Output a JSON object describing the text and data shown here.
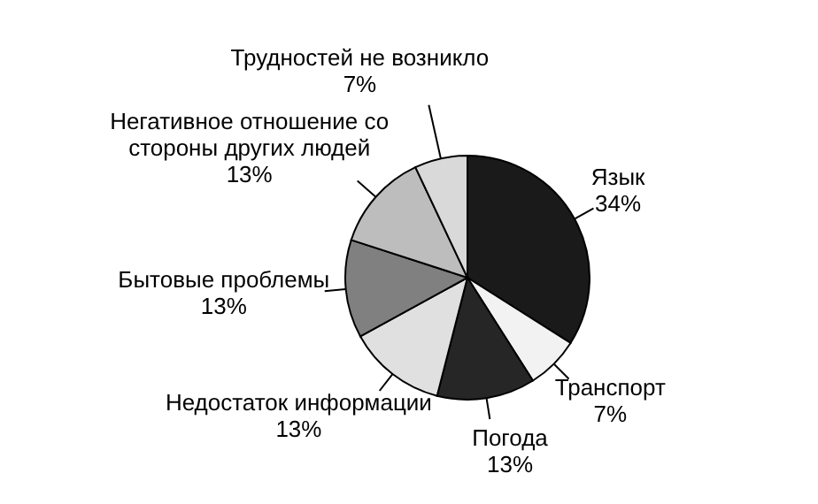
{
  "chart_data": {
    "type": "pie",
    "categories": [
      "Язык",
      "Транспорт",
      "Погода",
      "Недостаток информации",
      "Бытовые проблемы",
      "Негативное отношение со стороны других людей",
      "Трудностей не возникло"
    ],
    "values": [
      34,
      7,
      13,
      13,
      13,
      13,
      7
    ],
    "colors": [
      "#1a1a1a",
      "#f2f2f2",
      "#262626",
      "#e0e0e0",
      "#808080",
      "#bdbdbd",
      "#d9d9d9"
    ],
    "value_labels": [
      "34%",
      "7%",
      "13%",
      "13%",
      "13%",
      "13%",
      "7%"
    ]
  }
}
